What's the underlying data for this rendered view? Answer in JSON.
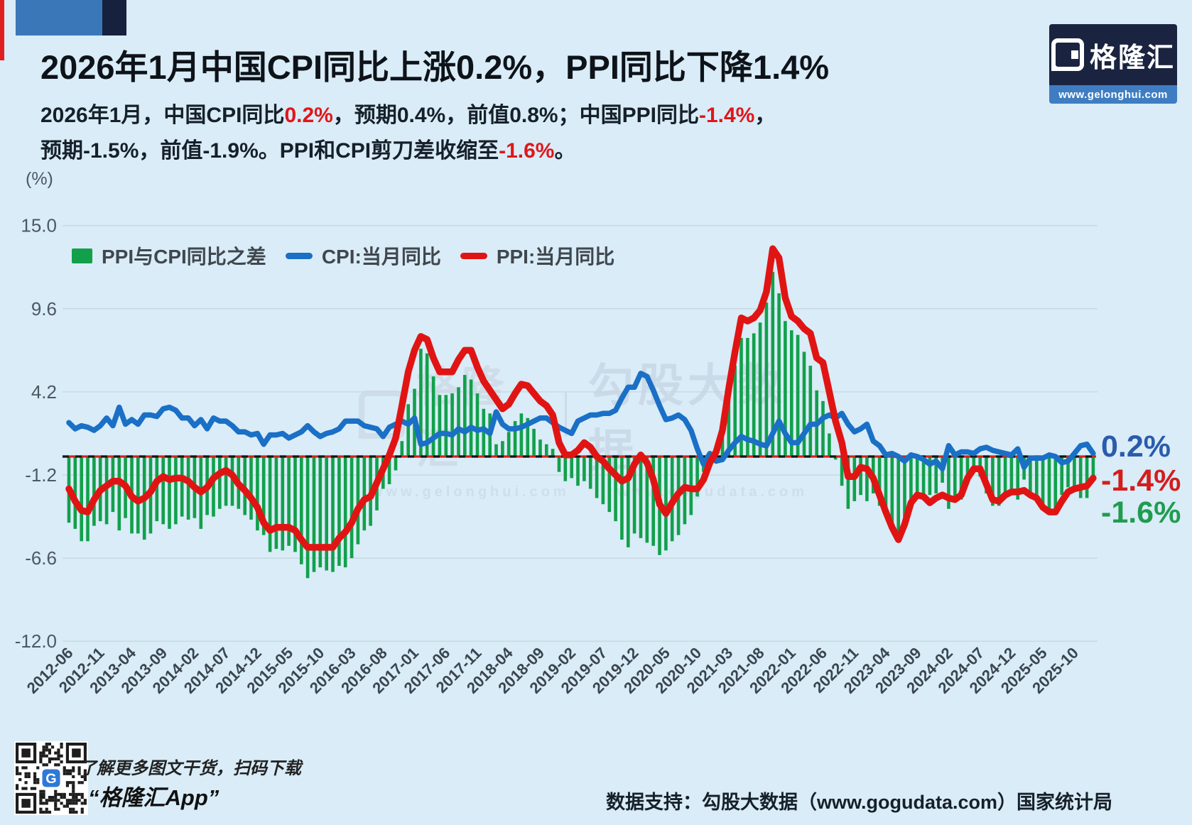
{
  "header": {
    "title": "2026年1月中国CPI同比上涨0.2%，PPI同比下降1.4%",
    "para_line1": [
      {
        "text": "2026年1月，中国CPI同比"
      },
      {
        "text": "0.2%"
      },
      {
        "text": "，预期0.4%，前值0.8%；中国PPI同比"
      },
      {
        "text": "-1.4%"
      },
      {
        "text": "，"
      }
    ],
    "para_line2": [
      {
        "text": "预期-1.5%，前值-1.9%。PPI和CPI剪刀差收缩至"
      },
      {
        "text": "-1.6%"
      },
      {
        "text": "。"
      }
    ],
    "accent_color": "#e0161a"
  },
  "logo": {
    "brand": "格隆汇",
    "url": "www.gelonghui.com"
  },
  "watermark": {
    "brand": "格隆汇",
    "right": "勾股大数据",
    "url_left": "www.gelonghui.com",
    "url_right": "www.gogudata.com"
  },
  "chart_data": {
    "type": "bar",
    "title": "",
    "unit_label": "(%)",
    "ylim": [
      -12.0,
      15.0
    ],
    "grid": true,
    "legend_position": "top-left-inside",
    "legend": [
      {
        "label": "PPI与CPI同比之差",
        "marker": "bar",
        "color": "#12a04b"
      },
      {
        "label": "CPI:当月同比",
        "marker": "line",
        "color": "#1a6fc6"
      },
      {
        "label": "PPI:当月同比",
        "marker": "line",
        "color": "#e11414"
      }
    ],
    "yticks": [
      "15.0",
      "9.6",
      "4.2",
      "-1.2",
      "-6.6",
      "-12.0"
    ],
    "xticks": [
      "2012-06",
      "2012-11",
      "2013-04",
      "2013-09",
      "2014-02",
      "2014-07",
      "2014-12",
      "2015-05",
      "2015-10",
      "2016-03",
      "2016-08",
      "2017-01",
      "2017-06",
      "2017-11",
      "2018-04",
      "2018-09",
      "2019-02",
      "2019-07",
      "2019-12",
      "2020-05",
      "2020-10",
      "2021-03",
      "2021-08",
      "2022-01",
      "2022-06",
      "2022-11",
      "2023-04",
      "2023-09",
      "2024-02",
      "2024-07",
      "2024-12",
      "2025-05",
      "2025-10"
    ],
    "xtick_every": 5,
    "months": [
      "2012-06",
      "2012-07",
      "2012-08",
      "2012-09",
      "2012-10",
      "2012-11",
      "2012-12",
      "2013-01",
      "2013-02",
      "2013-03",
      "2013-04",
      "2013-05",
      "2013-06",
      "2013-07",
      "2013-08",
      "2013-09",
      "2013-10",
      "2013-11",
      "2013-12",
      "2014-01",
      "2014-02",
      "2014-03",
      "2014-04",
      "2014-05",
      "2014-06",
      "2014-07",
      "2014-08",
      "2014-09",
      "2014-10",
      "2014-11",
      "2014-12",
      "2015-01",
      "2015-02",
      "2015-03",
      "2015-04",
      "2015-05",
      "2015-06",
      "2015-07",
      "2015-08",
      "2015-09",
      "2015-10",
      "2015-11",
      "2015-12",
      "2016-01",
      "2016-02",
      "2016-03",
      "2016-04",
      "2016-05",
      "2016-06",
      "2016-07",
      "2016-08",
      "2016-09",
      "2016-10",
      "2016-11",
      "2016-12",
      "2017-01",
      "2017-02",
      "2017-03",
      "2017-04",
      "2017-05",
      "2017-06",
      "2017-07",
      "2017-08",
      "2017-09",
      "2017-10",
      "2017-11",
      "2017-12",
      "2018-01",
      "2018-02",
      "2018-03",
      "2018-04",
      "2018-05",
      "2018-06",
      "2018-07",
      "2018-08",
      "2018-09",
      "2018-10",
      "2018-11",
      "2018-12",
      "2019-01",
      "2019-02",
      "2019-03",
      "2019-04",
      "2019-05",
      "2019-06",
      "2019-07",
      "2019-08",
      "2019-09",
      "2019-10",
      "2019-11",
      "2019-12",
      "2020-01",
      "2020-02",
      "2020-03",
      "2020-04",
      "2020-05",
      "2020-06",
      "2020-07",
      "2020-08",
      "2020-09",
      "2020-10",
      "2020-11",
      "2020-12",
      "2021-01",
      "2021-02",
      "2021-03",
      "2021-04",
      "2021-05",
      "2021-06",
      "2021-07",
      "2021-08",
      "2021-09",
      "2021-10",
      "2021-11",
      "2021-12",
      "2022-01",
      "2022-02",
      "2022-03",
      "2022-04",
      "2022-05",
      "2022-06",
      "2022-07",
      "2022-08",
      "2022-09",
      "2022-10",
      "2022-11",
      "2022-12",
      "2023-01",
      "2023-02",
      "2023-03",
      "2023-04",
      "2023-05",
      "2023-06",
      "2023-07",
      "2023-08",
      "2023-09",
      "2023-10",
      "2023-11",
      "2023-12",
      "2024-01",
      "2024-02",
      "2024-03",
      "2024-04",
      "2024-05",
      "2024-06",
      "2024-07",
      "2024-08",
      "2024-09",
      "2024-10",
      "2024-11",
      "2024-12",
      "2025-01",
      "2025-02",
      "2025-03",
      "2025-04",
      "2025-05",
      "2025-06",
      "2025-07",
      "2025-08",
      "2025-09",
      "2025-10",
      "2025-11",
      "2025-12",
      "2026-01"
    ],
    "cpi": [
      2.2,
      1.8,
      2.0,
      1.9,
      1.7,
      2.0,
      2.5,
      2.0,
      3.2,
      2.1,
      2.4,
      2.1,
      2.7,
      2.7,
      2.6,
      3.1,
      3.2,
      3.0,
      2.5,
      2.5,
      2.0,
      2.4,
      1.8,
      2.5,
      2.3,
      2.3,
      2.0,
      1.6,
      1.6,
      1.4,
      1.5,
      0.8,
      1.4,
      1.4,
      1.5,
      1.2,
      1.4,
      1.6,
      2.0,
      1.6,
      1.3,
      1.5,
      1.6,
      1.8,
      2.3,
      2.3,
      2.3,
      2.0,
      1.9,
      1.8,
      1.3,
      1.9,
      2.1,
      2.3,
      2.1,
      2.5,
      0.8,
      0.9,
      1.2,
      1.5,
      1.5,
      1.4,
      1.8,
      1.6,
      1.9,
      1.7,
      1.8,
      1.5,
      2.9,
      2.1,
      1.8,
      1.8,
      1.9,
      2.1,
      2.3,
      2.5,
      2.5,
      2.2,
      1.9,
      1.7,
      1.5,
      2.3,
      2.5,
      2.7,
      2.7,
      2.8,
      2.8,
      3.0,
      3.8,
      4.5,
      4.5,
      5.4,
      5.2,
      4.3,
      3.3,
      2.4,
      2.5,
      2.7,
      2.4,
      1.7,
      0.5,
      -0.5,
      0.2,
      -0.3,
      -0.2,
      0.4,
      0.9,
      1.3,
      1.1,
      1.0,
      0.8,
      0.7,
      1.5,
      2.3,
      1.5,
      0.9,
      0.9,
      1.5,
      2.1,
      2.1,
      2.5,
      2.7,
      2.5,
      2.8,
      2.1,
      1.6,
      1.8,
      2.1,
      1.0,
      0.7,
      0.1,
      0.2,
      0.0,
      -0.3,
      0.1,
      0.0,
      -0.2,
      -0.5,
      -0.3,
      -0.8,
      0.7,
      0.1,
      0.3,
      0.3,
      0.2,
      0.5,
      0.6,
      0.4,
      0.3,
      0.2,
      0.1,
      0.5,
      -0.7,
      -0.1,
      -0.1,
      -0.1,
      0.1,
      0.0,
      -0.4,
      -0.3,
      0.2,
      0.7,
      0.8,
      0.2
    ],
    "ppi": [
      -2.1,
      -2.9,
      -3.5,
      -3.6,
      -2.8,
      -2.2,
      -1.9,
      -1.6,
      -1.6,
      -1.9,
      -2.6,
      -2.9,
      -2.7,
      -2.3,
      -1.6,
      -1.3,
      -1.5,
      -1.4,
      -1.4,
      -1.6,
      -2.0,
      -2.3,
      -2.0,
      -1.4,
      -1.1,
      -0.9,
      -1.2,
      -1.8,
      -2.2,
      -2.7,
      -3.3,
      -4.3,
      -4.8,
      -4.6,
      -4.6,
      -4.6,
      -4.8,
      -5.4,
      -5.9,
      -5.9,
      -5.9,
      -5.9,
      -5.9,
      -5.3,
      -4.9,
      -4.3,
      -3.4,
      -2.8,
      -2.6,
      -1.7,
      -0.8,
      0.1,
      1.2,
      3.3,
      5.5,
      6.9,
      7.8,
      7.6,
      6.4,
      5.5,
      5.5,
      5.5,
      6.3,
      6.9,
      6.9,
      5.8,
      4.9,
      4.3,
      3.7,
      3.1,
      3.4,
      4.1,
      4.7,
      4.6,
      4.1,
      3.6,
      3.3,
      2.7,
      0.9,
      0.1,
      0.1,
      0.4,
      0.9,
      0.6,
      0.0,
      -0.3,
      -0.8,
      -1.2,
      -1.6,
      -1.4,
      -0.5,
      0.1,
      -0.4,
      -1.5,
      -3.1,
      -3.7,
      -3.0,
      -2.4,
      -2.0,
      -2.1,
      -2.1,
      -1.5,
      -0.4,
      0.3,
      1.7,
      4.4,
      6.8,
      9.0,
      8.8,
      9.0,
      9.5,
      10.7,
      13.5,
      12.9,
      10.3,
      9.1,
      8.8,
      8.3,
      8.0,
      6.4,
      6.1,
      4.2,
      2.3,
      0.9,
      -1.3,
      -1.3,
      -0.7,
      -0.8,
      -1.4,
      -2.5,
      -3.6,
      -4.6,
      -5.4,
      -4.4,
      -3.0,
      -2.5,
      -2.6,
      -3.0,
      -2.7,
      -2.5,
      -2.7,
      -2.8,
      -2.5,
      -1.4,
      -0.8,
      -0.8,
      -1.8,
      -2.8,
      -2.9,
      -2.5,
      -2.3,
      -2.3,
      -2.2,
      -2.5,
      -2.7,
      -3.3,
      -3.6,
      -3.6,
      -2.9,
      -2.3,
      -2.1,
      -2.0,
      -1.9,
      -1.4
    ],
    "diff_series_rule": "ppi - cpi",
    "zero_line": {
      "style": "dashed",
      "colors": [
        "#151515",
        "#d2231c"
      ]
    },
    "end_labels": [
      {
        "text": "0.2%",
        "color": "#2a5cab"
      },
      {
        "text": "-1.4%",
        "color": "#d41c1c"
      },
      {
        "text": "-1.6%",
        "color": "#209c50"
      }
    ]
  },
  "footer": {
    "qr_caption": "了解更多图文干货，扫码下载",
    "qr_app": "“格隆汇App”",
    "credit": "数据支持：勾股大数据（www.gogudata.com）国家统计局"
  }
}
